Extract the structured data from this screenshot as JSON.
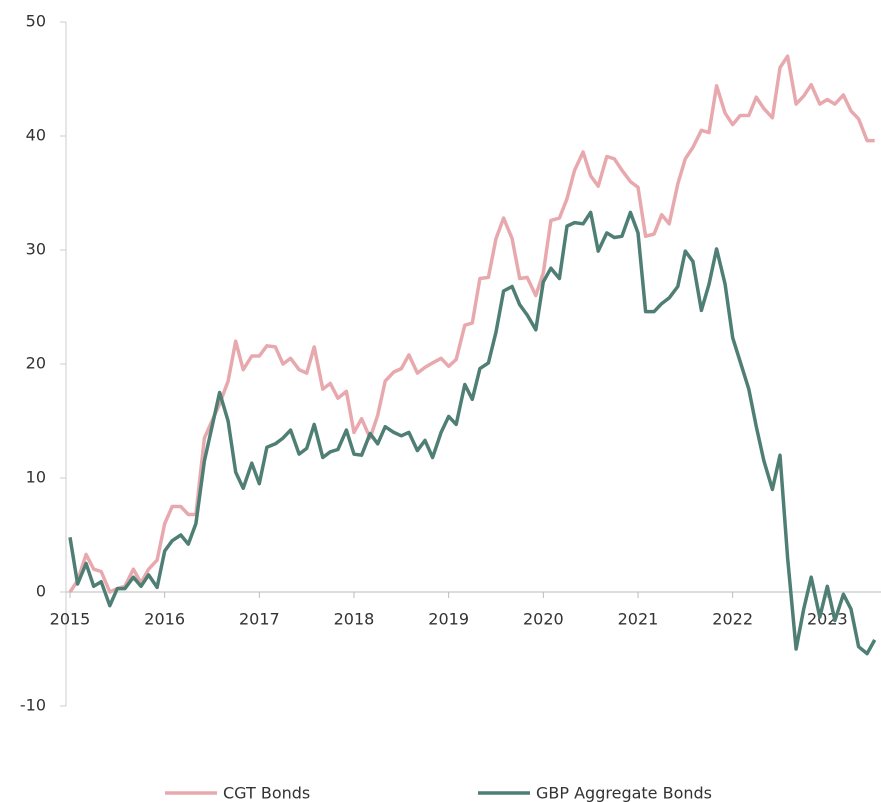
{
  "chart_data": {
    "type": "line",
    "x": [
      2015,
      2015.08,
      2015.17,
      2015.25,
      2015.33,
      2015.42,
      2015.5,
      2015.58,
      2015.67,
      2015.75,
      2015.83,
      2015.92,
      2016,
      2016.08,
      2016.17,
      2016.25,
      2016.33,
      2016.42,
      2016.5,
      2016.58,
      2016.67,
      2016.75,
      2016.83,
      2016.92,
      2017,
      2017.08,
      2017.17,
      2017.25,
      2017.33,
      2017.42,
      2017.5,
      2017.58,
      2017.67,
      2017.75,
      2017.83,
      2017.92,
      2018,
      2018.08,
      2018.17,
      2018.25,
      2018.33,
      2018.42,
      2018.5,
      2018.58,
      2018.67,
      2018.75,
      2018.83,
      2018.92,
      2019,
      2019.08,
      2019.17,
      2019.25,
      2019.33,
      2019.42,
      2019.5,
      2019.58,
      2019.67,
      2019.75,
      2019.83,
      2019.92,
      2020,
      2020.08,
      2020.17,
      2020.25,
      2020.33,
      2020.42,
      2020.5,
      2020.58,
      2020.67,
      2020.75,
      2020.83,
      2020.92,
      2021,
      2021.08,
      2021.17,
      2021.25,
      2021.33,
      2021.42,
      2021.5,
      2021.58,
      2021.67,
      2021.75,
      2021.83,
      2021.92,
      2022,
      2022.08,
      2022.17,
      2022.25,
      2022.33,
      2022.42,
      2022.5,
      2022.58,
      2022.67,
      2022.75,
      2022.83,
      2022.92,
      2023,
      2023.08,
      2023.17,
      2023.25,
      2023.33,
      2023.42,
      2023.5
    ],
    "series": [
      {
        "name": "CGT Bonds",
        "color": "#e8a9ae",
        "values": [
          0,
          1.0,
          3.3,
          2.0,
          1.8,
          0,
          0.3,
          0.5,
          2.0,
          0.8,
          2.0,
          2.8,
          6.0,
          7.5,
          7.5,
          6.8,
          6.8,
          13.5,
          15.0,
          16.5,
          18.5,
          22.0,
          19.5,
          20.7,
          20.7,
          21.6,
          21.5,
          20.0,
          20.5,
          19.5,
          19.2,
          21.5,
          17.8,
          18.3,
          17.0,
          17.6,
          14.0,
          15.2,
          13.5,
          15.5,
          18.5,
          19.3,
          19.6,
          20.8,
          19.2,
          19.7,
          20.1,
          20.5,
          19.8,
          20.4,
          23.4,
          23.6,
          27.5,
          27.6,
          31.0,
          32.8,
          31.0,
          27.5,
          27.6,
          26.0,
          28.0,
          32.6,
          32.8,
          34.5,
          37.0,
          38.6,
          36.5,
          35.6,
          38.2,
          38.0,
          37.0,
          36.0,
          35.5,
          31.2,
          31.4,
          33.1,
          32.3,
          35.8,
          38.0,
          39.0,
          40.5,
          40.3,
          44.4,
          42.0,
          41.0,
          41.8,
          41.8,
          43.4,
          42.4,
          41.6,
          46.0,
          47.0,
          42.8,
          43.5,
          44.5,
          42.8,
          43.2,
          42.8,
          43.6,
          42.2,
          41.5,
          39.6,
          39.6
        ]
      },
      {
        "name": "GBP Aggregate Bonds",
        "color": "#4f7f74",
        "values": [
          4.8,
          0.7,
          2.5,
          0.5,
          0.9,
          -1.2,
          0.3,
          0.3,
          1.3,
          0.5,
          1.5,
          0.4,
          3.6,
          4.5,
          5.0,
          4.2,
          6.0,
          11.5,
          14.5,
          17.5,
          15.0,
          10.5,
          9.1,
          11.3,
          9.5,
          12.7,
          13.0,
          13.5,
          14.2,
          12.1,
          12.6,
          14.7,
          11.8,
          12.3,
          12.5,
          14.2,
          12.1,
          12.0,
          13.9,
          13.0,
          14.5,
          14.0,
          13.7,
          14.0,
          12.4,
          13.3,
          11.8,
          14.0,
          15.4,
          14.7,
          18.2,
          16.9,
          19.6,
          20.1,
          22.8,
          26.4,
          26.8,
          25.2,
          24.3,
          23.0,
          27.2,
          28.4,
          27.5,
          32.1,
          32.4,
          32.3,
          33.3,
          29.9,
          31.5,
          31.1,
          31.2,
          33.3,
          31.5,
          24.6,
          24.6,
          25.3,
          25.8,
          26.8,
          29.9,
          29.0,
          24.7,
          27.0,
          30.1,
          27.0,
          22.3,
          20.2,
          17.8,
          14.5,
          11.5,
          9.0,
          12.0,
          3.0,
          -5.0,
          -1.5,
          1.3,
          -2.2,
          0.5,
          -2.5,
          -0.2,
          -1.5,
          -4.8,
          -5.4,
          -4.2
        ]
      }
    ],
    "xlim": [
      2015,
      2023.53
    ],
    "xticks": [
      2015,
      2016,
      2017,
      2018,
      2019,
      2020,
      2021,
      2022,
      2023
    ],
    "ylim": [
      -10,
      50
    ],
    "yticks": [
      -10,
      0,
      10,
      20,
      30,
      40,
      50
    ],
    "legend": "bottom"
  }
}
